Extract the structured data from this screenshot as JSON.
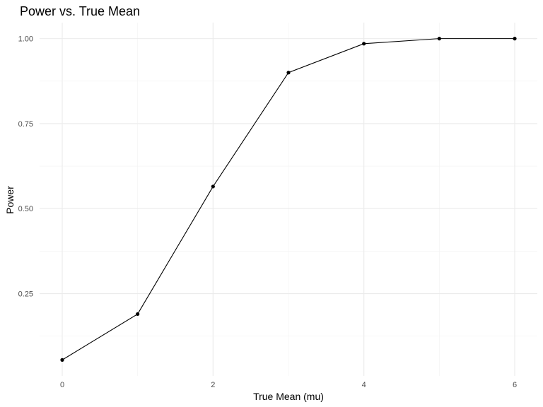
{
  "chart_data": {
    "type": "line",
    "title": "Power vs. True Mean",
    "xlabel": "True Mean (mu)",
    "ylabel": "Power",
    "x": [
      0,
      1,
      2,
      3,
      4,
      5,
      6
    ],
    "series": [
      {
        "values": [
          0.055,
          0.19,
          0.565,
          0.9,
          0.985,
          1.0,
          1.0
        ]
      }
    ],
    "xlim": [
      -0.3,
      6.3
    ],
    "ylim": [
      0.008,
      1.047
    ],
    "xticks": [
      0,
      2,
      4,
      6
    ],
    "xtick_labels": [
      "0",
      "2",
      "4",
      "6"
    ],
    "yticks": [
      0.25,
      0.5,
      0.75,
      1.0
    ],
    "ytick_labels": [
      "0.25",
      "0.50",
      "0.75",
      "1.00"
    ],
    "grid": true,
    "markers": true,
    "line_color": "#000000",
    "background": "#ffffff"
  }
}
